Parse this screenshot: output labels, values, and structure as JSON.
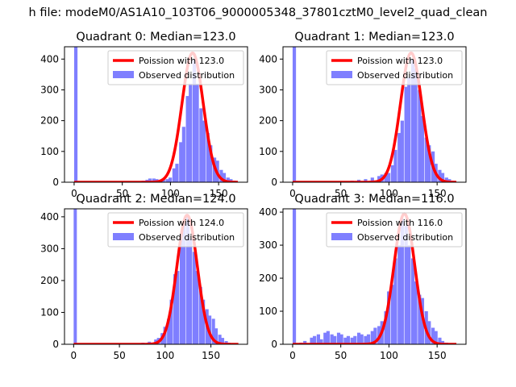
{
  "figure": {
    "suptitle": "h file: modeM0/AS1A10_103T06_9000005348_37801cztM0_level2_quad_clean"
  },
  "colors": {
    "observed": "#7f7fff",
    "poisson": "#ff0000"
  },
  "chart_data": [
    {
      "type": "bar",
      "title": "Quadrant 0: Median=123.0",
      "median": 123.0,
      "xlim": [
        -10,
        180
      ],
      "ylim": [
        0,
        440
      ],
      "xticks": [
        0,
        50,
        100,
        150
      ],
      "yticks": [
        0,
        100,
        200,
        300,
        400
      ],
      "legend": {
        "placement": "upper right",
        "entries": [
          "Poission with 123.0",
          "Observed distribution"
        ]
      },
      "series": [
        {
          "name": "Poission with 123.0",
          "type": "line",
          "mean": 123.0,
          "peak": 420,
          "x_range": [
            0,
            170
          ]
        },
        {
          "name": "Observed distribution",
          "type": "histogram",
          "bin_width": 3.5,
          "bins": [
            [
              0,
              440
            ],
            [
              70,
              5
            ],
            [
              74,
              8
            ],
            [
              77,
              12
            ],
            [
              81,
              12
            ],
            [
              84,
              10
            ],
            [
              88,
              5
            ],
            [
              91,
              8
            ],
            [
              95,
              10
            ],
            [
              98,
              15
            ],
            [
              102,
              45
            ],
            [
              105,
              60
            ],
            [
              109,
              130
            ],
            [
              112,
              180
            ],
            [
              116,
              280
            ],
            [
              119,
              320
            ],
            [
              123,
              400
            ],
            [
              126,
              320
            ],
            [
              130,
              240
            ],
            [
              133,
              200
            ],
            [
              137,
              160
            ],
            [
              140,
              120
            ],
            [
              144,
              80
            ],
            [
              147,
              70
            ],
            [
              151,
              40
            ],
            [
              154,
              30
            ],
            [
              158,
              15
            ],
            [
              161,
              10
            ],
            [
              165,
              5
            ]
          ]
        }
      ]
    },
    {
      "type": "bar",
      "title": "Quadrant 1: Median=123.0",
      "median": 123.0,
      "xlim": [
        -10,
        180
      ],
      "ylim": [
        0,
        440
      ],
      "xticks": [
        0,
        50,
        100,
        150
      ],
      "yticks": [
        0,
        100,
        200,
        300,
        400
      ],
      "legend": {
        "placement": "upper right",
        "entries": [
          "Poission with 123.0",
          "Observed distribution"
        ]
      },
      "series": [
        {
          "name": "Poission with 123.0",
          "type": "line",
          "mean": 123.0,
          "peak": 420,
          "x_range": [
            0,
            170
          ]
        },
        {
          "name": "Observed distribution",
          "type": "histogram",
          "bin_width": 3.5,
          "bins": [
            [
              0,
              440
            ],
            [
              60,
              5
            ],
            [
              67,
              8
            ],
            [
              74,
              10
            ],
            [
              81,
              15
            ],
            [
              88,
              20
            ],
            [
              91,
              25
            ],
            [
              95,
              30
            ],
            [
              98,
              30
            ],
            [
              102,
              55
            ],
            [
              105,
              105
            ],
            [
              109,
              160
            ],
            [
              112,
              200
            ],
            [
              116,
              310
            ],
            [
              119,
              340
            ],
            [
              123,
              400
            ],
            [
              126,
              370
            ],
            [
              130,
              300
            ],
            [
              133,
              215
            ],
            [
              137,
              145
            ],
            [
              140,
              120
            ],
            [
              144,
              100
            ],
            [
              147,
              60
            ],
            [
              151,
              40
            ],
            [
              154,
              30
            ],
            [
              158,
              15
            ],
            [
              161,
              10
            ],
            [
              165,
              5
            ]
          ]
        }
      ]
    },
    {
      "type": "bar",
      "title": "Quadrant 2: Median=124.0",
      "median": 124.0,
      "xlim": [
        -10,
        190
      ],
      "ylim": [
        0,
        425
      ],
      "xticks": [
        0,
        50,
        100,
        150
      ],
      "yticks": [
        0,
        100,
        200,
        300,
        400
      ],
      "legend": {
        "placement": "upper right",
        "entries": [
          "Poission with 124.0",
          "Observed distribution"
        ]
      },
      "series": [
        {
          "name": "Poission with 124.0",
          "type": "line",
          "mean": 124.0,
          "peak": 405,
          "x_range": [
            0,
            180
          ]
        },
        {
          "name": "Observed distribution",
          "type": "histogram",
          "bin_width": 3.5,
          "bins": [
            [
              0,
              425
            ],
            [
              74,
              5
            ],
            [
              81,
              8
            ],
            [
              88,
              15
            ],
            [
              91,
              20
            ],
            [
              95,
              35
            ],
            [
              98,
              55
            ],
            [
              102,
              80
            ],
            [
              105,
              140
            ],
            [
              109,
              220
            ],
            [
              112,
              230
            ],
            [
              116,
              330
            ],
            [
              119,
              380
            ],
            [
              123,
              400
            ],
            [
              126,
              330
            ],
            [
              130,
              290
            ],
            [
              133,
              230
            ],
            [
              137,
              180
            ],
            [
              140,
              140
            ],
            [
              144,
              110
            ],
            [
              147,
              90
            ],
            [
              151,
              80
            ],
            [
              154,
              50
            ],
            [
              158,
              30
            ],
            [
              161,
              20
            ],
            [
              165,
              10
            ],
            [
              168,
              5
            ]
          ]
        }
      ]
    },
    {
      "type": "bar",
      "title": "Quadrant 3: Median=116.0",
      "median": 116.0,
      "xlim": [
        -10,
        180
      ],
      "ylim": [
        0,
        410
      ],
      "xticks": [
        0,
        50,
        100,
        150
      ],
      "yticks": [
        0,
        100,
        200,
        300,
        400
      ],
      "legend": {
        "placement": "upper right",
        "entries": [
          "Poission with 116.0",
          "Observed distribution"
        ]
      },
      "series": [
        {
          "name": "Poission with 116.0",
          "type": "line",
          "mean": 116.0,
          "peak": 395,
          "x_range": [
            0,
            170
          ]
        },
        {
          "name": "Observed distribution",
          "type": "histogram",
          "bin_width": 3.5,
          "bins": [
            [
              0,
              410
            ],
            [
              7,
              5
            ],
            [
              11,
              10
            ],
            [
              18,
              20
            ],
            [
              21,
              25
            ],
            [
              25,
              30
            ],
            [
              28,
              15
            ],
            [
              32,
              35
            ],
            [
              35,
              40
            ],
            [
              39,
              30
            ],
            [
              42,
              25
            ],
            [
              46,
              35
            ],
            [
              49,
              30
            ],
            [
              53,
              20
            ],
            [
              56,
              25
            ],
            [
              60,
              20
            ],
            [
              63,
              25
            ],
            [
              67,
              35
            ],
            [
              70,
              30
            ],
            [
              74,
              25
            ],
            [
              77,
              30
            ],
            [
              81,
              40
            ],
            [
              84,
              50
            ],
            [
              88,
              55
            ],
            [
              91,
              70
            ],
            [
              95,
              100
            ],
            [
              98,
              160
            ],
            [
              102,
              180
            ],
            [
              105,
              260
            ],
            [
              109,
              300
            ],
            [
              112,
              380
            ],
            [
              116,
              360
            ],
            [
              119,
              300
            ],
            [
              123,
              260
            ],
            [
              126,
              190
            ],
            [
              130,
              150
            ],
            [
              133,
              140
            ],
            [
              137,
              100
            ],
            [
              140,
              70
            ],
            [
              144,
              50
            ],
            [
              147,
              40
            ],
            [
              151,
              20
            ],
            [
              154,
              10
            ],
            [
              158,
              5
            ]
          ]
        }
      ]
    }
  ]
}
